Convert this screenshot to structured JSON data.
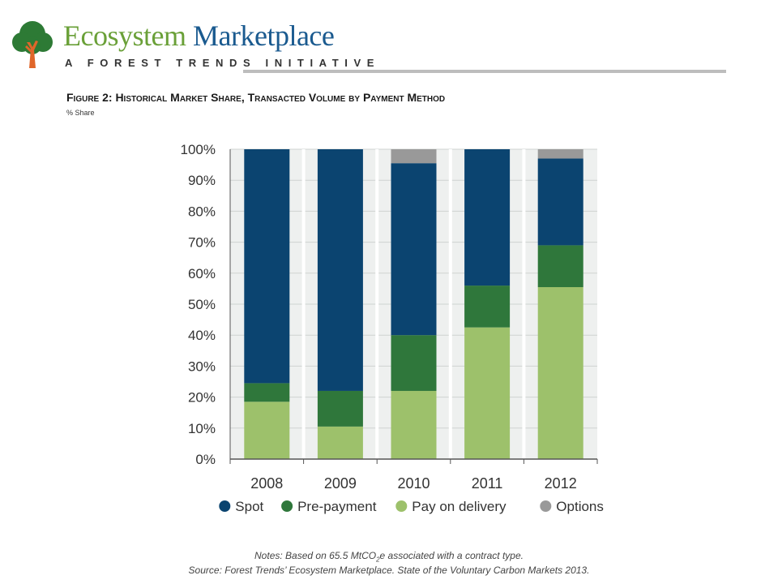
{
  "header": {
    "logo_name_part1": "Ecosystem",
    "logo_name_part2": "Marketplace",
    "logo_tagline": "A FOREST TRENDS INITIATIVE",
    "brand_colors": {
      "green": "#6aa038",
      "blue": "#1a5a8f",
      "orange": "#e0662a"
    }
  },
  "figure": {
    "title": "Figure 2: Historical Market Share, Transacted Volume by Payment Method",
    "subtitle": "% Share"
  },
  "notes": {
    "prefix": "Notes: Based on 65.5 MtCO",
    "subscript": "2",
    "suffix": "e associated with a contract type.",
    "source": "Source: Forest Trends’ Ecosystem Marketplace. State of the Voluntary Carbon Markets 2013."
  },
  "chart_data": {
    "type": "bar",
    "stacked": true,
    "categories": [
      "2008",
      "2009",
      "2010",
      "2011",
      "2012"
    ],
    "series": [
      {
        "name": "Pay on delivery",
        "color": "#9dc16b",
        "values": [
          18.5,
          10.5,
          22,
          42.5,
          55.5
        ]
      },
      {
        "name": "Pre-payment",
        "color": "#2f773b",
        "values": [
          6,
          11.5,
          18,
          13.5,
          13.5
        ]
      },
      {
        "name": "Spot",
        "color": "#0b4470",
        "values": [
          75.5,
          78,
          55.5,
          44,
          28
        ]
      },
      {
        "name": "Options",
        "color": "#999999",
        "values": [
          0,
          0,
          4.5,
          0,
          3
        ]
      }
    ],
    "legend_order": [
      "Spot",
      "Pre-payment",
      "Pay on delivery",
      "Options"
    ],
    "legend_position": "bottom",
    "ylim": [
      0,
      100
    ],
    "yticks": [
      "0%",
      "10%",
      "20%",
      "30%",
      "40%",
      "50%",
      "60%",
      "70%",
      "80%",
      "90%",
      "100%"
    ],
    "xlabel": "",
    "ylabel": "",
    "grid": true,
    "background": "#eef0ef",
    "column_separator_color": "#ffffff"
  }
}
